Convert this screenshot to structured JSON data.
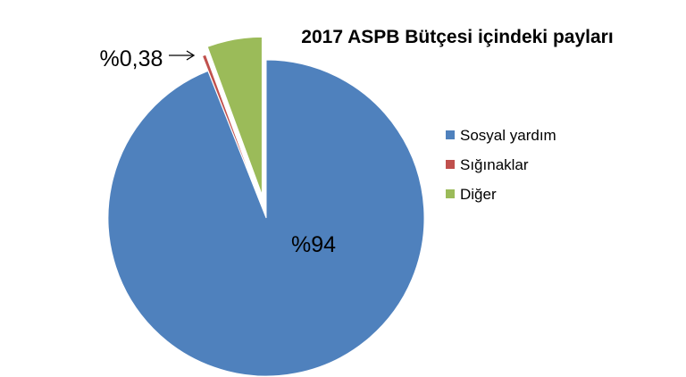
{
  "chart_data": {
    "type": "pie",
    "title": "2017 ASPB Bütçesi içindeki payları",
    "categories": [
      "Sosyal yardım",
      "Sığınaklar",
      "Diğer"
    ],
    "values": [
      94,
      0.38,
      5.62
    ],
    "colors": [
      "#4f81bd",
      "#c0504d",
      "#9bbb59"
    ],
    "data_labels": [
      "%94",
      "%0,38",
      ""
    ],
    "legend_position": "right"
  }
}
